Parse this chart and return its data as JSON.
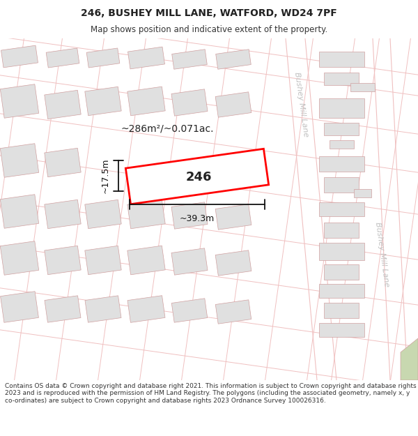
{
  "title": "246, BUSHEY MILL LANE, WATFORD, WD24 7PF",
  "subtitle": "Map shows position and indicative extent of the property.",
  "footer": "Contains OS data © Crown copyright and database right 2021. This information is subject to Crown copyright and database rights 2023 and is reproduced with the permission of HM Land Registry. The polygons (including the associated geometry, namely x, y co-ordinates) are subject to Crown copyright and database rights 2023 Ordnance Survey 100026316.",
  "title_fontsize": 10,
  "subtitle_fontsize": 8.5,
  "footer_fontsize": 6.5,
  "area_label": "~286m²/~0.071ac.",
  "plot_label": "246",
  "width_label": "~39.3m",
  "height_label": "~17.5m",
  "street_name_top": "Bushey Mill Lane",
  "street_name_bottom": "Bushey Mill Lane",
  "bg_color": "#f8f8f8",
  "road_line_color": "#f0c0c0",
  "building_fill": "#e0e0e0",
  "building_edge": "#d0a0a0",
  "plot_fill": "#ffffff",
  "plot_edge": "#ff0000",
  "road_fill": "#ffffff",
  "street_label_color": "#c0c0c0",
  "dim_color": "#111111",
  "green_fill": "#c8d8b0"
}
